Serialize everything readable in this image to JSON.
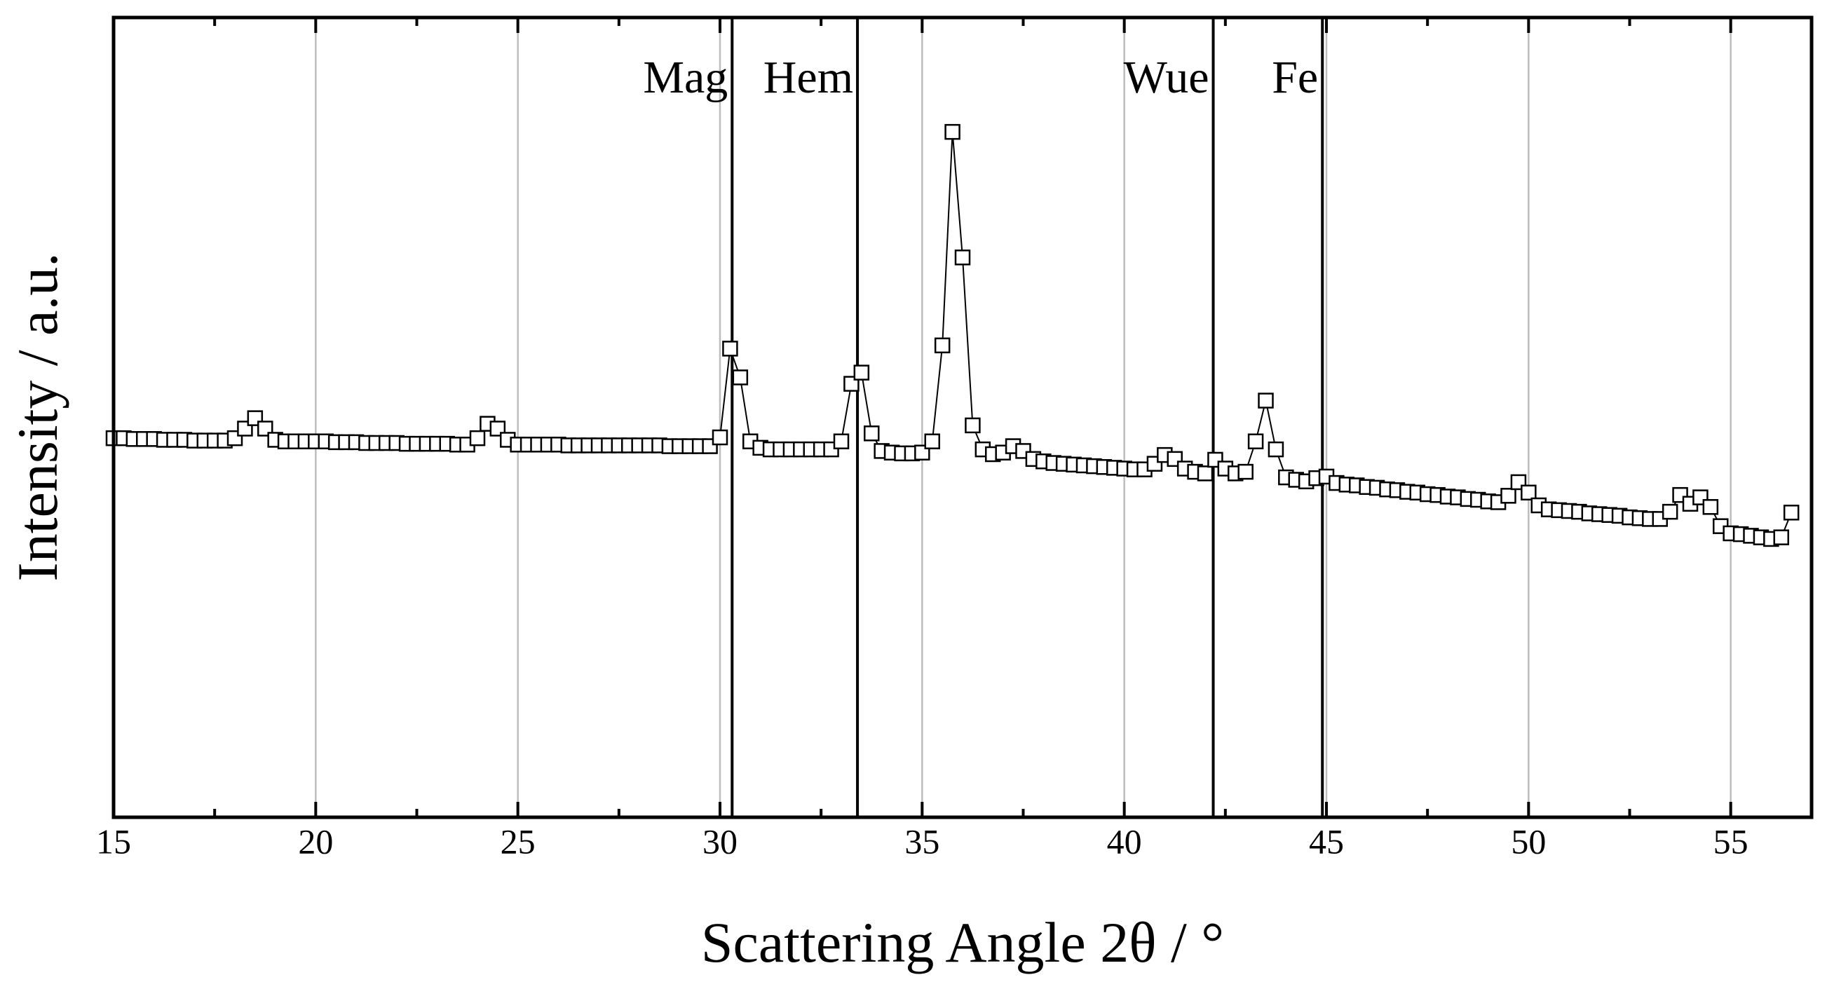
{
  "chart_data": {
    "type": "line-scatter",
    "x_label": "Scattering Angle 2θ / °",
    "y_label": "Intensity / a.u.",
    "xlim": [
      15,
      57
    ],
    "ylim": [
      0,
      100
    ],
    "xticks": [
      15,
      20,
      25,
      30,
      35,
      40,
      45,
      50,
      55
    ],
    "xminorticks": [
      17.5,
      22.5,
      27.5,
      32.5,
      37.5,
      42.5,
      47.5,
      52.5
    ],
    "grid": true,
    "color": "#000000",
    "reference_lines": [
      {
        "label": "Mag",
        "x": 30.3
      },
      {
        "label": "Hem",
        "x": 33.4
      },
      {
        "label": "Wue",
        "x": 42.2
      },
      {
        "label": "Fe",
        "x": 44.9
      }
    ],
    "x": [
      15,
      15.25,
      15.5,
      15.75,
      16,
      16.25,
      16.5,
      16.75,
      17,
      17.25,
      17.5,
      17.75,
      18,
      18.25,
      18.5,
      18.75,
      19,
      19.25,
      19.5,
      19.75,
      20,
      20.25,
      20.5,
      20.75,
      21,
      21.25,
      21.5,
      21.75,
      22,
      22.25,
      22.5,
      22.75,
      23,
      23.25,
      23.5,
      23.75,
      24,
      24.25,
      24.5,
      24.75,
      25,
      25.25,
      25.5,
      25.75,
      26,
      26.25,
      26.5,
      26.75,
      27,
      27.25,
      27.5,
      27.75,
      28,
      28.25,
      28.5,
      28.75,
      29,
      29.25,
      29.5,
      29.75,
      30,
      30.25,
      30.5,
      30.75,
      31,
      31.25,
      31.5,
      31.75,
      32,
      32.25,
      32.5,
      32.75,
      33,
      33.25,
      33.5,
      33.75,
      34,
      34.25,
      34.5,
      34.75,
      35,
      35.25,
      35.5,
      35.75,
      36,
      36.25,
      36.5,
      36.75,
      37,
      37.25,
      37.5,
      37.75,
      38,
      38.25,
      38.5,
      38.75,
      39,
      39.25,
      39.5,
      39.75,
      40,
      40.25,
      40.5,
      40.75,
      41,
      41.25,
      41.5,
      41.75,
      42,
      42.25,
      42.5,
      42.75,
      43,
      43.25,
      43.5,
      43.75,
      44,
      44.25,
      44.5,
      44.75,
      45,
      45.25,
      45.5,
      45.75,
      46,
      46.25,
      46.5,
      46.75,
      47,
      47.25,
      47.5,
      47.75,
      48,
      48.25,
      48.5,
      48.75,
      49,
      49.25,
      49.5,
      49.75,
      50,
      50.25,
      50.5,
      50.75,
      51,
      51.25,
      51.5,
      51.75,
      52,
      52.25,
      52.5,
      52.75,
      53,
      53.25,
      53.5,
      53.75,
      54,
      54.25,
      54.5,
      54.75,
      55,
      55.25,
      55.5,
      55.75,
      56,
      56.25,
      56.5
    ],
    "values": [
      47.4,
      47.4,
      47.3,
      47.3,
      47.3,
      47.2,
      47.2,
      47.2,
      47.1,
      47.1,
      47.1,
      47.1,
      47.4,
      48.6,
      49.9,
      48.6,
      47.2,
      47.0,
      47.0,
      47.0,
      47.0,
      47.0,
      46.9,
      46.9,
      46.9,
      46.8,
      46.8,
      46.8,
      46.8,
      46.7,
      46.7,
      46.7,
      46.7,
      46.7,
      46.6,
      46.6,
      47.4,
      49.2,
      48.6,
      47.2,
      46.6,
      46.6,
      46.6,
      46.6,
      46.6,
      46.5,
      46.5,
      46.5,
      46.5,
      46.5,
      46.5,
      46.5,
      46.5,
      46.5,
      46.5,
      46.4,
      46.4,
      46.4,
      46.4,
      46.4,
      47.5,
      58.6,
      55.0,
      47.0,
      46.2,
      46.0,
      46.0,
      46.0,
      46.0,
      46.0,
      46.0,
      46.0,
      47.0,
      54.2,
      55.6,
      48.0,
      45.8,
      45.6,
      45.5,
      45.5,
      45.6,
      47.0,
      59.0,
      85.7,
      70.0,
      49.0,
      46.0,
      45.4,
      45.6,
      46.4,
      45.8,
      44.8,
      44.5,
      44.3,
      44.2,
      44.1,
      44.0,
      43.9,
      43.8,
      43.7,
      43.6,
      43.5,
      43.5,
      44.2,
      45.3,
      44.8,
      43.6,
      43.2,
      43.0,
      44.7,
      43.6,
      43.0,
      43.2,
      47.0,
      52.1,
      46.0,
      42.5,
      42.2,
      42.0,
      42.4,
      42.6,
      41.8,
      41.6,
      41.5,
      41.3,
      41.2,
      41.0,
      40.9,
      40.7,
      40.6,
      40.4,
      40.3,
      40.1,
      40.0,
      39.8,
      39.7,
      39.5,
      39.4,
      40.2,
      41.9,
      40.6,
      39.0,
      38.5,
      38.4,
      38.3,
      38.2,
      38.0,
      37.9,
      37.8,
      37.7,
      37.5,
      37.4,
      37.3,
      37.3,
      38.2,
      40.3,
      39.2,
      40.0,
      38.8,
      36.4,
      35.5,
      35.4,
      35.2,
      35.0,
      34.8,
      35.0,
      38.1
    ]
  }
}
